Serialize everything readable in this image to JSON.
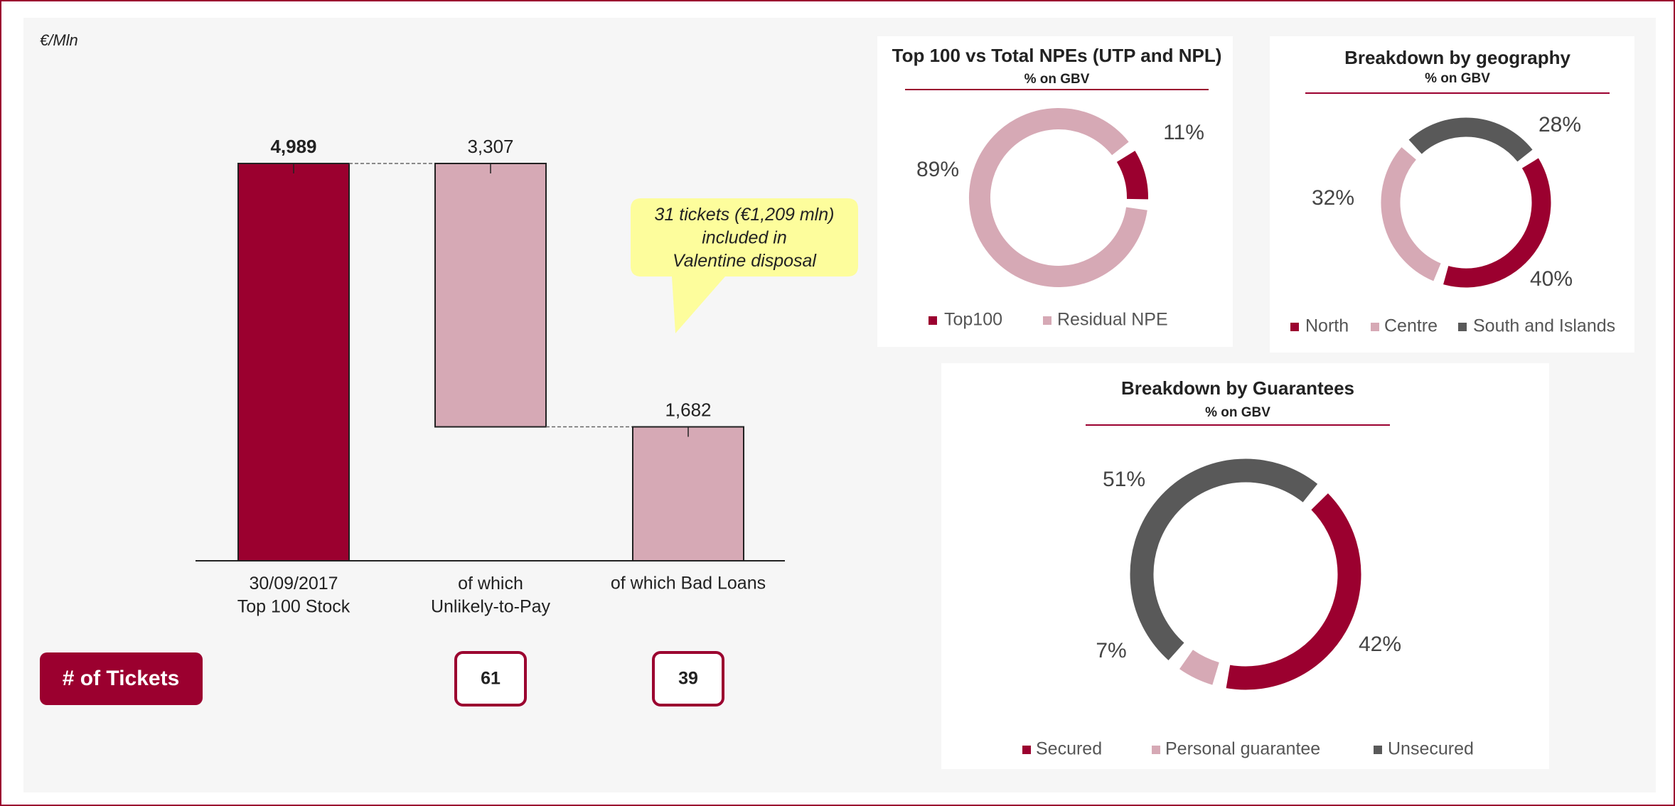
{
  "chart_data": [
    {
      "type": "waterfall",
      "unit_label": "€/Mln",
      "categories": [
        "30/09/2017\nTop 100 Stock",
        "of which\nUnlikely-to-Pay",
        "of which Bad Loans"
      ],
      "measure": [
        "total",
        "decrease",
        "total"
      ],
      "values": [
        4989,
        3307,
        1682
      ],
      "value_labels": [
        "4,989",
        "3,307",
        "1,682"
      ],
      "colors": [
        "#9b002f",
        "#d6a9b5",
        "#d6a9b5"
      ],
      "annotation": "31 tickets (€1,209 mln)\nincluded in\nValentine disposal",
      "tickets_label": "# of Tickets",
      "tickets": [
        null,
        61,
        39
      ]
    },
    {
      "type": "donut",
      "title": "Top 100 vs Total NPEs (UTP and NPL)",
      "subtitle": "% on GBV",
      "categories": [
        "Top100",
        "Residual NPE"
      ],
      "values": [
        11,
        89
      ],
      "value_labels": [
        "11%",
        "89%"
      ],
      "colors": [
        "#9b002f",
        "#d6a9b5"
      ]
    },
    {
      "type": "donut",
      "title": "Breakdown by geography",
      "subtitle": "% on GBV",
      "categories": [
        "North",
        "Centre",
        "South and Islands"
      ],
      "values": [
        40,
        32,
        28
      ],
      "value_labels": [
        "40%",
        "32%",
        "28%"
      ],
      "colors": [
        "#9b002f",
        "#d6a9b5",
        "#595959"
      ]
    },
    {
      "type": "donut",
      "title": "Breakdown by Guarantees",
      "subtitle": "% on GBV",
      "categories": [
        "Secured",
        "Personal guarantee",
        "Unsecured"
      ],
      "values": [
        42,
        7,
        51
      ],
      "value_labels": [
        "42%",
        "7%",
        "51%"
      ],
      "colors": [
        "#9b002f",
        "#d6a9b5",
        "#595959"
      ]
    }
  ]
}
